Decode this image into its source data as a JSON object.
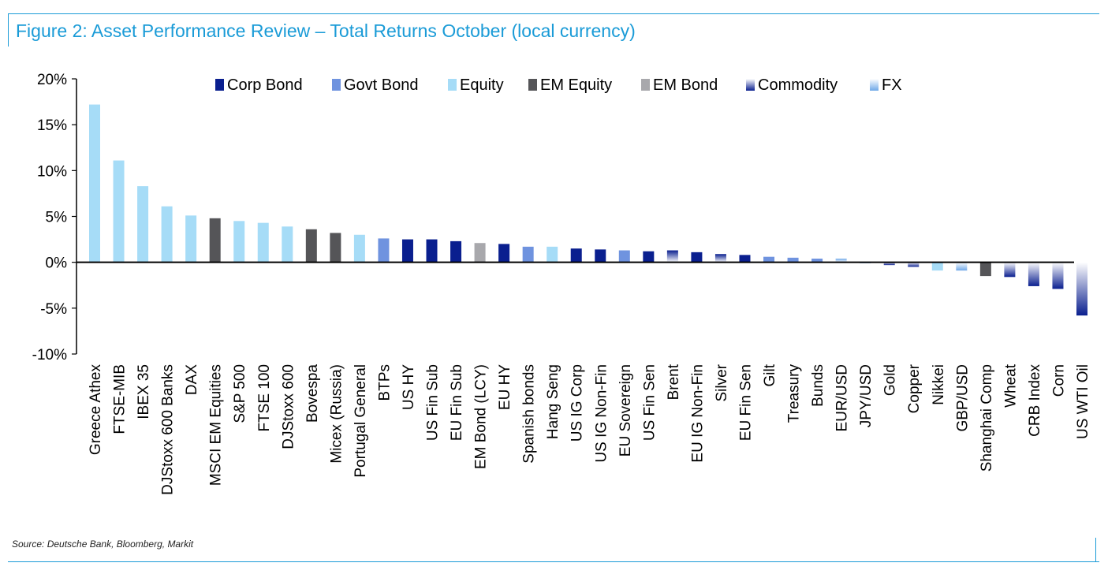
{
  "header": {
    "title": "Figure 2: Asset Performance Review – Total Returns October (local currency)"
  },
  "footer": {
    "source": "Source: Deutsche Bank, Bloomberg, Markit"
  },
  "colors": {
    "accent": "#1a9bd7",
    "Corp Bond": "#0a1f8f",
    "Govt Bond": "#6f93df",
    "Equity": "#a6dcf7",
    "EM Equity": "#555558",
    "EM Bond": "#a8a8ac",
    "Commodity": "gradient:#0a1f8f-#ffffff",
    "FX": "gradient:#6fa8e8-#ffffff"
  },
  "chart_data": {
    "type": "bar",
    "ylim": [
      -10,
      20
    ],
    "yticks": [
      -10,
      -5,
      0,
      5,
      10,
      15,
      20
    ],
    "ytick_labels": [
      "-10%",
      "-5%",
      "0%",
      "5%",
      "10%",
      "15%",
      "20%"
    ],
    "grid": false,
    "legend": {
      "placement": "top",
      "entries": [
        "Corp Bond",
        "Govt Bond",
        "Equity",
        "EM Equity",
        "EM Bond",
        "Commodity",
        "FX"
      ]
    },
    "categories": [
      "Greece Athex",
      "FTSE-MIB",
      "IBEX 35",
      "DJStoxx 600 Banks",
      "DAX",
      "MSCI EM Equities",
      "S&P 500",
      "FTSE 100",
      "DJStoxx 600",
      "Bovespa",
      "Micex (Russia)",
      "Portugal General",
      "BTPs",
      "US HY",
      "US Fin Sub",
      "EU Fin Sub",
      "EM Bond (LCY)",
      "EU HY",
      "Spanish bonds",
      "Hang Seng",
      "US IG Corp",
      "US IG Non-Fin",
      "EU Sovereign",
      "US Fin Sen",
      "Brent",
      "EU IG Non-Fin",
      "Silver",
      "EU Fin Sen",
      "Gilt",
      "Treasury",
      "Bunds",
      "EUR/USD",
      "JPY/USD",
      "Gold",
      "Copper",
      "Nikkei",
      "GBP/USD",
      "Shanghai Comp",
      "Wheat",
      "CRB Index",
      "Corn",
      "US WTI Oil"
    ],
    "values": [
      17.2,
      11.1,
      8.3,
      6.1,
      5.1,
      4.8,
      4.5,
      4.3,
      3.9,
      3.6,
      3.2,
      3.0,
      2.6,
      2.5,
      2.5,
      2.3,
      2.1,
      2.0,
      1.7,
      1.7,
      1.5,
      1.4,
      1.3,
      1.2,
      1.3,
      1.1,
      0.9,
      0.8,
      0.6,
      0.5,
      0.4,
      0.4,
      -0.1,
      -0.3,
      -0.5,
      -0.9,
      -0.9,
      -1.5,
      -1.6,
      -2.6,
      -2.9,
      -5.8
    ],
    "groups": [
      "Equity",
      "Equity",
      "Equity",
      "Equity",
      "Equity",
      "EM Equity",
      "Equity",
      "Equity",
      "Equity",
      "EM Equity",
      "EM Equity",
      "Equity",
      "Govt Bond",
      "Corp Bond",
      "Corp Bond",
      "Corp Bond",
      "EM Bond",
      "Corp Bond",
      "Govt Bond",
      "Equity",
      "Corp Bond",
      "Corp Bond",
      "Govt Bond",
      "Corp Bond",
      "Commodity",
      "Corp Bond",
      "Commodity",
      "Corp Bond",
      "Govt Bond",
      "Govt Bond",
      "Govt Bond",
      "FX",
      "FX",
      "Commodity",
      "Commodity",
      "Equity",
      "FX",
      "EM Equity",
      "Commodity",
      "Commodity",
      "Commodity",
      "Commodity"
    ]
  }
}
